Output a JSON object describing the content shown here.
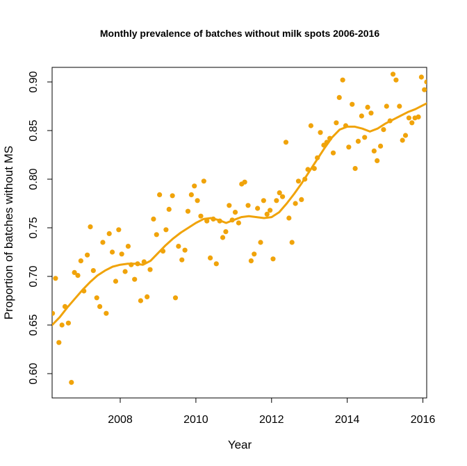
{
  "chart_data": {
    "type": "scatter",
    "title": "Monthly prevalence of batches without milk spots 2006-2016",
    "xlabel": "Year",
    "ylabel": "Proportion of batches without MS",
    "xlim": [
      2006.2,
      2016.1
    ],
    "ylim": [
      0.575,
      0.915
    ],
    "xticks": [
      "2008",
      "2010",
      "2012",
      "2014",
      "2016"
    ],
    "yticks": [
      "0.60",
      "0.65",
      "0.70",
      "0.75",
      "0.80",
      "0.85",
      "0.90"
    ],
    "grid": false,
    "legend": "none",
    "colors": {
      "points": "#F0A30A",
      "trend": "#F0A30A",
      "axes": "#000000"
    },
    "series": [
      {
        "kind": "points",
        "x": [
          2006.21,
          2006.29,
          2006.38,
          2006.46,
          2006.54,
          2006.63,
          2006.71,
          2006.79,
          2006.88,
          2006.96,
          2007.04,
          2007.13,
          2007.21,
          2007.29,
          2007.38,
          2007.46,
          2007.54,
          2007.63,
          2007.71,
          2007.79,
          2007.88,
          2007.96,
          2008.04,
          2008.13,
          2008.21,
          2008.29,
          2008.38,
          2008.46,
          2008.54,
          2008.63,
          2008.71,
          2008.79,
          2008.88,
          2008.96,
          2009.04,
          2009.13,
          2009.21,
          2009.29,
          2009.38,
          2009.46,
          2009.54,
          2009.63,
          2009.71,
          2009.79,
          2009.88,
          2009.96,
          2010.04,
          2010.13,
          2010.21,
          2010.29,
          2010.38,
          2010.46,
          2010.54,
          2010.63,
          2010.71,
          2010.79,
          2010.88,
          2010.96,
          2011.04,
          2011.13,
          2011.21,
          2011.29,
          2011.38,
          2011.46,
          2011.54,
          2011.63,
          2011.71,
          2011.79,
          2011.88,
          2011.96,
          2012.04,
          2012.13,
          2012.21,
          2012.29,
          2012.38,
          2012.46,
          2012.54,
          2012.63,
          2012.71,
          2012.79,
          2012.88,
          2012.96,
          2013.04,
          2013.13,
          2013.21,
          2013.29,
          2013.38,
          2013.46,
          2013.54,
          2013.63,
          2013.71,
          2013.79,
          2013.88,
          2013.96,
          2014.04,
          2014.13,
          2014.21,
          2014.29,
          2014.38,
          2014.46,
          2014.54,
          2014.63,
          2014.71,
          2014.79,
          2014.88,
          2014.96,
          2015.04,
          2015.13,
          2015.21,
          2015.29,
          2015.38,
          2015.46,
          2015.54,
          2015.63,
          2015.71,
          2015.79,
          2015.88,
          2015.96,
          2016.04,
          2016.1
        ],
        "y": [
          0.662,
          0.698,
          0.632,
          0.65,
          0.669,
          0.652,
          0.591,
          0.704,
          0.701,
          0.716,
          0.685,
          0.722,
          0.751,
          0.706,
          0.678,
          0.669,
          0.735,
          0.662,
          0.744,
          0.725,
          0.695,
          0.748,
          0.723,
          0.705,
          0.731,
          0.712,
          0.697,
          0.713,
          0.675,
          0.715,
          0.679,
          0.707,
          0.759,
          0.743,
          0.784,
          0.726,
          0.748,
          0.769,
          0.783,
          0.678,
          0.731,
          0.717,
          0.727,
          0.767,
          0.784,
          0.793,
          0.778,
          0.762,
          0.798,
          0.757,
          0.719,
          0.759,
          0.713,
          0.757,
          0.74,
          0.746,
          0.773,
          0.758,
          0.766,
          0.755,
          0.795,
          0.797,
          0.773,
          0.716,
          0.723,
          0.77,
          0.735,
          0.778,
          0.764,
          0.768,
          0.718,
          0.778,
          0.786,
          0.782,
          0.838,
          0.76,
          0.735,
          0.775,
          0.798,
          0.779,
          0.8,
          0.81,
          0.855,
          0.811,
          0.822,
          0.848,
          0.835,
          0.838,
          0.842,
          0.827,
          0.858,
          0.884,
          0.902,
          0.855,
          0.833,
          0.877,
          0.811,
          0.839,
          0.865,
          0.843,
          0.874,
          0.868,
          0.829,
          0.819,
          0.834,
          0.851,
          0.875,
          0.86,
          0.908,
          0.902,
          0.875,
          0.84,
          0.845,
          0.863,
          0.858,
          0.863,
          0.864,
          0.905,
          0.892,
          0.9
        ]
      },
      {
        "kind": "trend",
        "x": [
          2006.2,
          2006.4,
          2006.6,
          2006.8,
          2007.0,
          2007.2,
          2007.4,
          2007.6,
          2007.8,
          2008.0,
          2008.2,
          2008.4,
          2008.6,
          2008.8,
          2009.0,
          2009.2,
          2009.4,
          2009.6,
          2009.8,
          2010.0,
          2010.2,
          2010.4,
          2010.6,
          2010.8,
          2011.0,
          2011.2,
          2011.4,
          2011.6,
          2011.8,
          2012.0,
          2012.2,
          2012.4,
          2012.6,
          2012.8,
          2013.0,
          2013.2,
          2013.4,
          2013.6,
          2013.8,
          2014.0,
          2014.2,
          2014.4,
          2014.6,
          2014.8,
          2015.0,
          2015.2,
          2015.4,
          2015.6,
          2015.8,
          2016.0,
          2016.1
        ],
        "y": [
          0.65,
          0.658,
          0.668,
          0.677,
          0.686,
          0.694,
          0.701,
          0.706,
          0.71,
          0.712,
          0.713,
          0.713,
          0.712,
          0.716,
          0.724,
          0.732,
          0.739,
          0.745,
          0.75,
          0.755,
          0.759,
          0.76,
          0.758,
          0.755,
          0.758,
          0.761,
          0.762,
          0.761,
          0.76,
          0.761,
          0.766,
          0.775,
          0.785,
          0.796,
          0.808,
          0.82,
          0.832,
          0.843,
          0.851,
          0.854,
          0.854,
          0.852,
          0.849,
          0.852,
          0.857,
          0.861,
          0.865,
          0.869,
          0.872,
          0.876,
          0.878
        ]
      }
    ]
  }
}
